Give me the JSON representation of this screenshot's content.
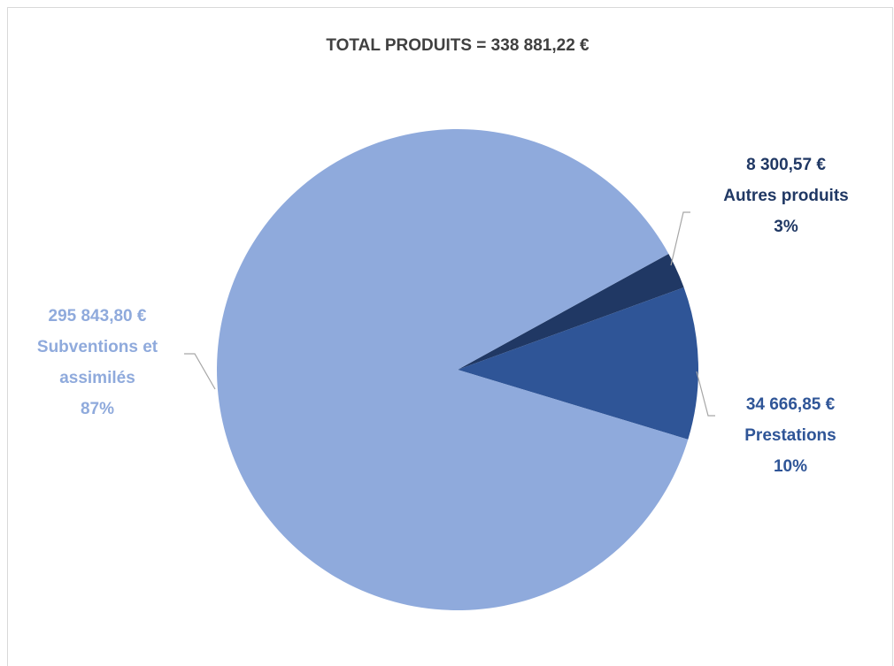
{
  "chart_data": {
    "type": "pie",
    "title": "TOTAL PRODUITS = 338 881,22 €",
    "categories": [
      "Autres produits",
      "Prestations",
      "Subventions et assimilés"
    ],
    "values": [
      8300.57,
      34666.85,
      295843.8
    ],
    "value_labels": [
      "8 300,57 €",
      "34 666,85 €",
      "295 843,80 €"
    ],
    "percent_labels": [
      "3%",
      "10%",
      "87%"
    ],
    "colors": [
      "#203864",
      "#2f5597",
      "#8faadc"
    ]
  }
}
